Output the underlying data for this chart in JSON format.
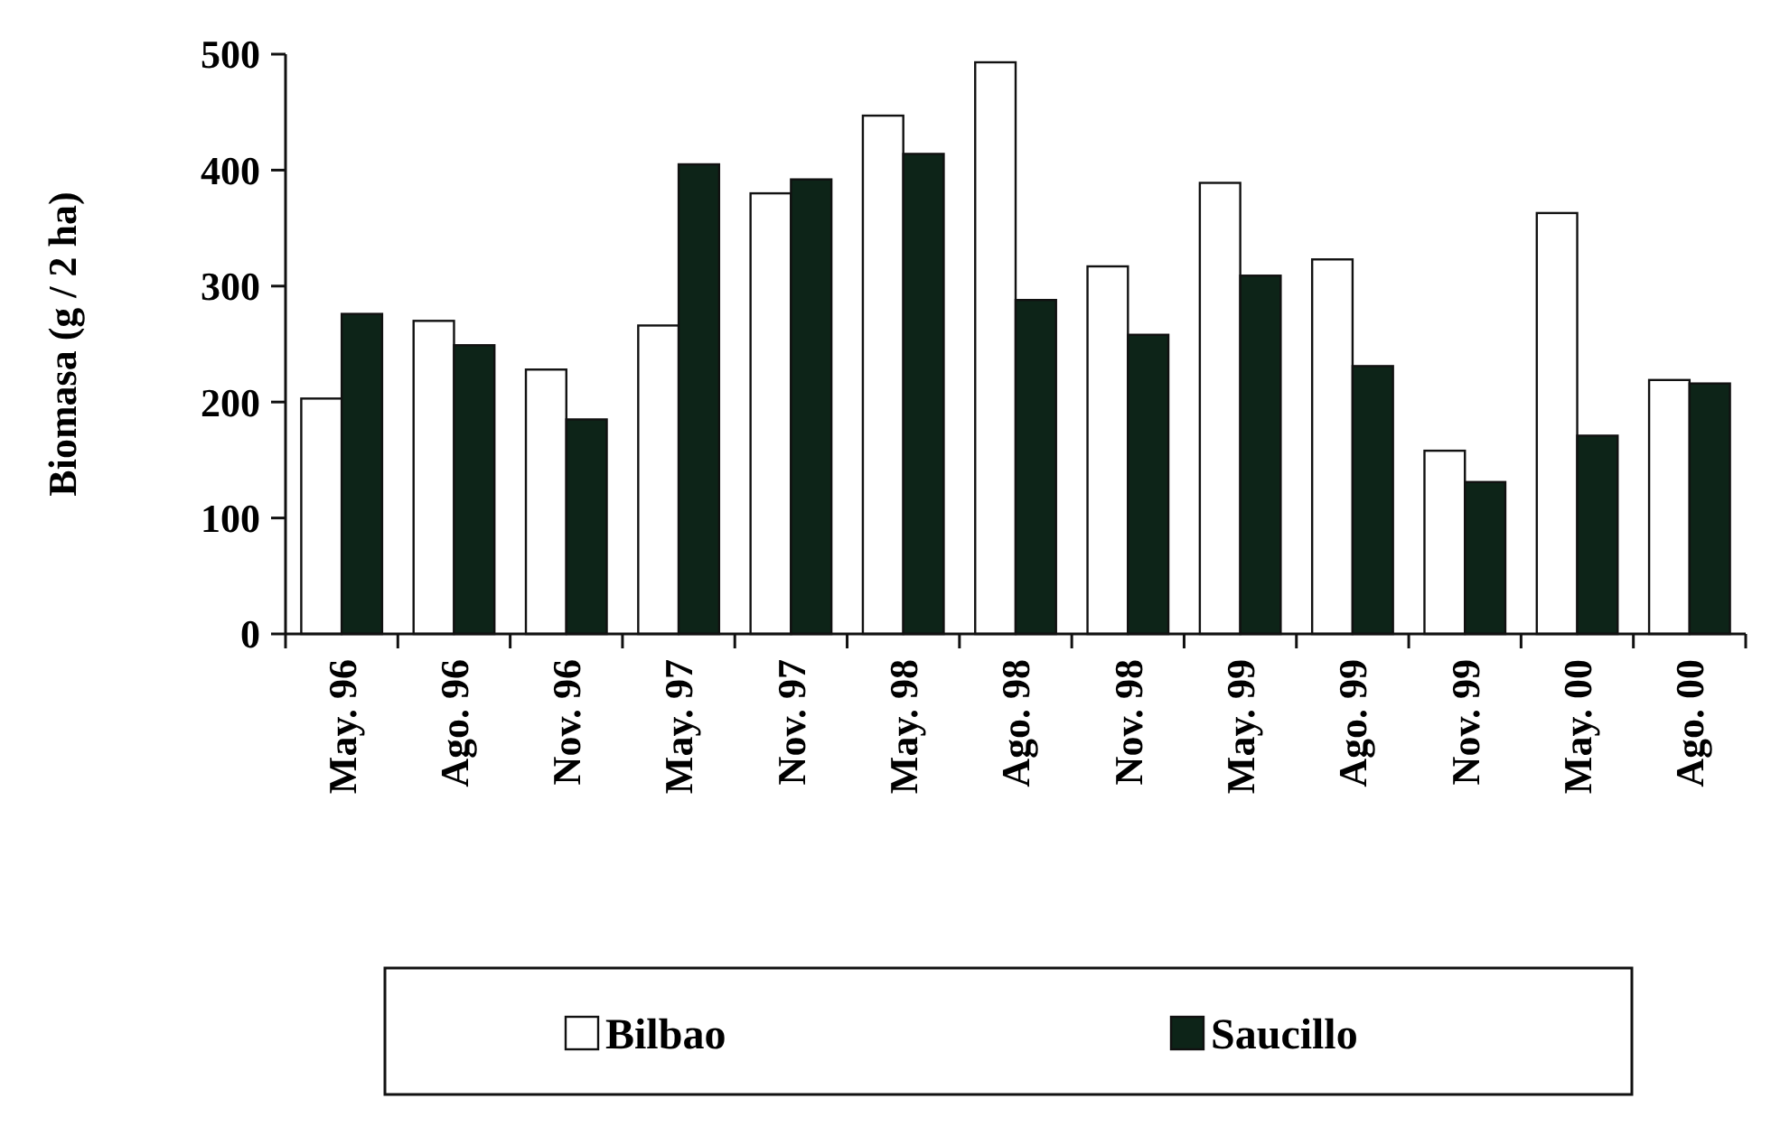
{
  "chart_data": {
    "type": "bar",
    "ylabel": "Biomasa (g / 2 ha)",
    "categories": [
      "May. 96",
      "Ago. 96",
      "Nov. 96",
      "May. 97",
      "Nov. 97",
      "May. 98",
      "Ago. 98",
      "Nov. 98",
      "May. 99",
      "Ago. 99",
      "Nov. 99",
      "May. 00",
      "Ago. 00"
    ],
    "series": [
      {
        "name": "Bilbao",
        "color": "#ffffff",
        "values": [
          203,
          270,
          228,
          266,
          380,
          447,
          493,
          317,
          389,
          323,
          158,
          363,
          219
        ]
      },
      {
        "name": "Saucillo",
        "color": "#0d2418",
        "values": [
          276,
          249,
          185,
          405,
          392,
          414,
          288,
          258,
          309,
          231,
          131,
          171,
          216
        ]
      }
    ],
    "ylim": [
      0,
      500
    ],
    "yticks": [
      0,
      100,
      200,
      300,
      400,
      500
    ],
    "grid": false,
    "legend": "bottom"
  }
}
